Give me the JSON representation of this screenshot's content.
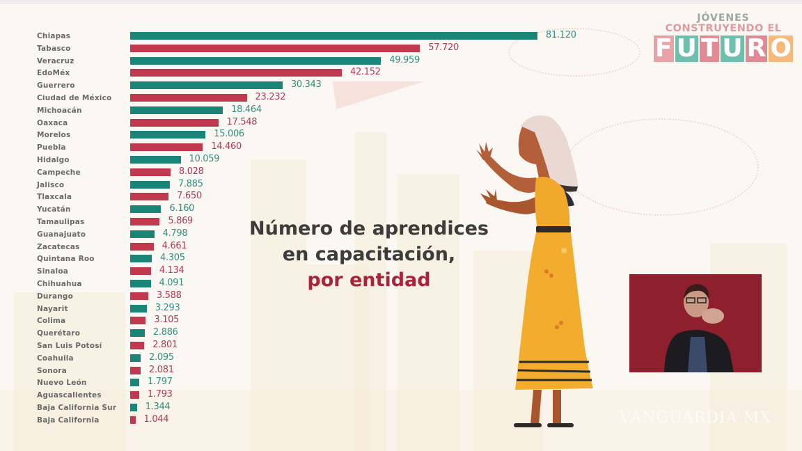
{
  "logo": {
    "line1": "JÓVENES",
    "line2": "CONSTRUYENDO EL",
    "line3_letters": [
      "F",
      "U",
      "T",
      "U",
      "R",
      "O"
    ],
    "line3_colors": [
      "#e9a3a8",
      "#6fbfae",
      "#e28a93",
      "#6fbfae",
      "#e28a93",
      "#f5b97c"
    ]
  },
  "title": {
    "line1": "Número de aprendices",
    "line2": "en capacitación,",
    "line3": "por entidad"
  },
  "colors": {
    "green": "#1a8577",
    "red": "#c0394f",
    "green_text": "#2f8f83",
    "red_text": "#b03a52",
    "title_accent": "#a8243b"
  },
  "watermark": "VANGUARDIA MX",
  "chart_data": {
    "type": "bar",
    "orientation": "horizontal",
    "title": "Número de aprendices en capacitación, por entidad",
    "xlabel": "",
    "ylabel": "",
    "grid": false,
    "legend": false,
    "categories": [
      "Chiapas",
      "Tabasco",
      "Veracruz",
      "EdoMéx",
      "Guerrero",
      "Ciudad de México",
      "Michoacán",
      "Oaxaca",
      "Morelos",
      "Puebla",
      "Hidalgo",
      "Campeche",
      "Jalisco",
      "Tlaxcala",
      "Yucatán",
      "Tamaulipas",
      "Guanajuato",
      "Zacatecas",
      "Quintana Roo",
      "Sinaloa",
      "Chihuahua",
      "Durango",
      "Nayarit",
      "Colima",
      "Querétaro",
      "San Luis Potosí",
      "Coahuila",
      "Sonora",
      "Nuevo León",
      "Aguascalientes",
      "Baja California Sur",
      "Baja California"
    ],
    "values": [
      81120,
      57720,
      49959,
      42152,
      30343,
      23232,
      18464,
      17548,
      15006,
      14460,
      10059,
      8028,
      7885,
      7650,
      6160,
      5869,
      4798,
      4661,
      4305,
      4134,
      4091,
      3588,
      3293,
      3105,
      2886,
      2801,
      2095,
      2081,
      1797,
      1793,
      1344,
      1044
    ],
    "value_labels": [
      "81.120",
      "57.720",
      "49.959",
      "42.152",
      "30.343",
      "23.232",
      "18.464",
      "17.548",
      "15.006",
      "14.460",
      "10.059",
      "8.028",
      "7.885",
      "7.650",
      "6.160",
      "5.869",
      "4.798",
      "4.661",
      "4.305",
      "4.134",
      "4.091",
      "3.588",
      "3.293",
      "3.105",
      "2.886",
      "2.801",
      "2.095",
      "2.081",
      "1.797",
      "1.793",
      "1.344",
      "1.044"
    ],
    "bar_colors_alternating": [
      "#1a8577",
      "#c0394f"
    ],
    "xlim": [
      0,
      81120
    ]
  }
}
